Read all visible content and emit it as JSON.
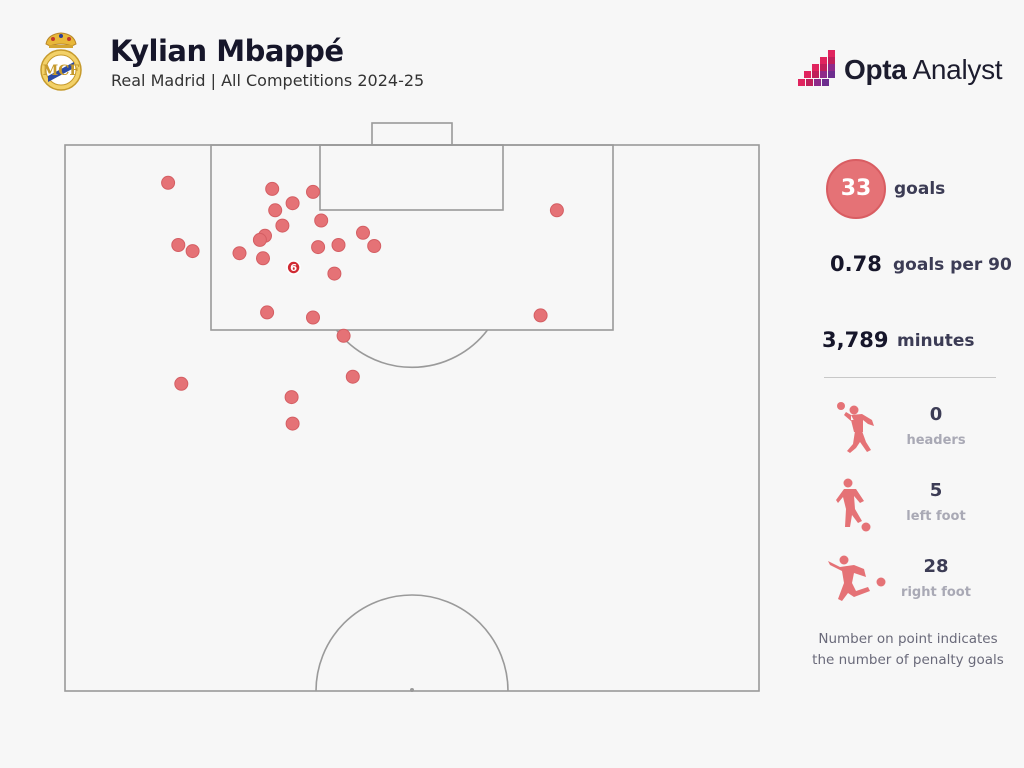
{
  "header": {
    "title": "Kylian Mbappé",
    "subtitle": "Real Madrid | All Competitions 2024-25",
    "crest_icon": "real-madrid-crest-icon",
    "brand": {
      "bold": "Opta",
      "light": " Analyst",
      "icon": "opta-logo-icon",
      "accent": "#e0245e"
    }
  },
  "stats": {
    "goals_value": "33",
    "goals_label": "goals",
    "per90_value": "0.78",
    "per90_label": "goals per 90",
    "minutes_value": "3,789",
    "minutes_label": "minutes"
  },
  "body_parts": [
    {
      "count": "0",
      "label": "headers",
      "icon": "header-player-icon"
    },
    {
      "count": "5",
      "label": "left foot",
      "icon": "left-foot-player-icon"
    },
    {
      "count": "28",
      "label": "right foot",
      "icon": "right-foot-player-icon"
    }
  ],
  "note": {
    "line1": "Number on point indicates",
    "line2": "the number of penalty goals"
  },
  "colors": {
    "marker_fill": "#e57276",
    "marker_stroke": "#d45e63",
    "penalty_fill": "#d02a33",
    "line": "#9a9a9a"
  },
  "chart_data": {
    "type": "scatter",
    "description_units": "pitch coordinates in metres: x across the width (0 to 68), y distance from the goal line (0 to 52.5)",
    "points": [
      {
        "x": 10.1,
        "y": 3.7
      },
      {
        "x": 20.3,
        "y": 4.3
      },
      {
        "x": 24.3,
        "y": 4.6
      },
      {
        "x": 22.3,
        "y": 5.7
      },
      {
        "x": 20.6,
        "y": 6.4
      },
      {
        "x": 48.2,
        "y": 6.4
      },
      {
        "x": 25.1,
        "y": 7.4
      },
      {
        "x": 21.3,
        "y": 7.9
      },
      {
        "x": 29.2,
        "y": 8.6
      },
      {
        "x": 19.6,
        "y": 8.9
      },
      {
        "x": 19.1,
        "y": 9.3
      },
      {
        "x": 11.1,
        "y": 9.8
      },
      {
        "x": 12.5,
        "y": 10.4
      },
      {
        "x": 17.1,
        "y": 10.6
      },
      {
        "x": 24.8,
        "y": 10.0
      },
      {
        "x": 26.8,
        "y": 9.8
      },
      {
        "x": 30.3,
        "y": 9.9
      },
      {
        "x": 19.4,
        "y": 11.1
      },
      {
        "x": 22.4,
        "y": 12.0,
        "penalty_goals": "6"
      },
      {
        "x": 26.4,
        "y": 12.6
      },
      {
        "x": 46.6,
        "y": 16.7
      },
      {
        "x": 19.8,
        "y": 16.4
      },
      {
        "x": 24.3,
        "y": 16.9
      },
      {
        "x": 27.3,
        "y": 18.7
      },
      {
        "x": 11.4,
        "y": 23.4
      },
      {
        "x": 28.2,
        "y": 22.7
      },
      {
        "x": 22.2,
        "y": 24.7
      },
      {
        "x": 22.3,
        "y": 27.3
      }
    ]
  }
}
